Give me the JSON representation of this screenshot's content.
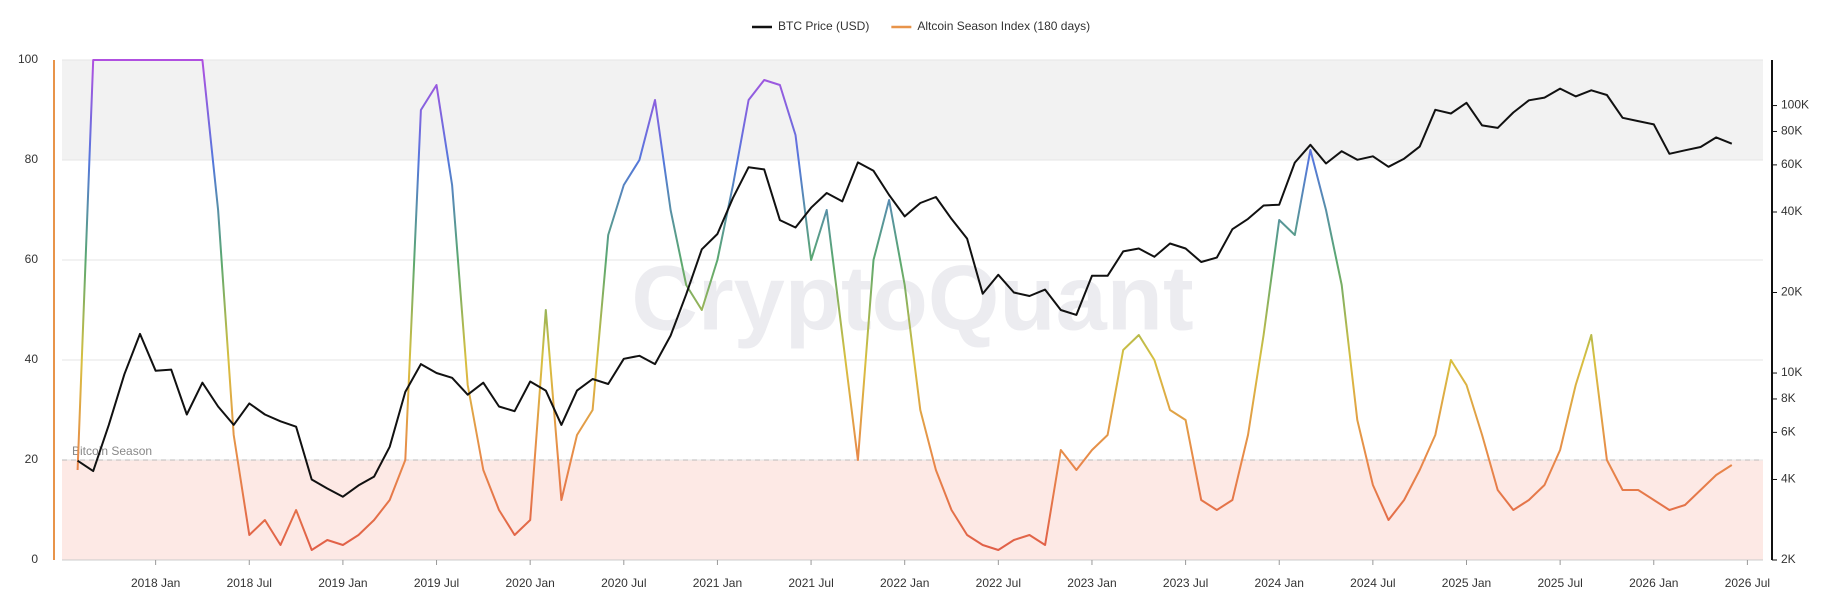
{
  "chart_data": {
    "type": "line",
    "watermark": "CryptoQuant",
    "x": [
      "2017-08",
      "2017-09",
      "2017-10",
      "2017-11",
      "2017-12",
      "2018-01",
      "2018-02",
      "2018-03",
      "2018-04",
      "2018-05",
      "2018-06",
      "2018-07",
      "2018-08",
      "2018-09",
      "2018-10",
      "2018-11",
      "2018-12",
      "2019-01",
      "2019-02",
      "2019-03",
      "2019-04",
      "2019-05",
      "2019-06",
      "2019-07",
      "2019-08",
      "2019-09",
      "2019-10",
      "2019-11",
      "2019-12",
      "2020-01",
      "2020-02",
      "2020-03",
      "2020-04",
      "2020-05",
      "2020-06",
      "2020-07",
      "2020-08",
      "2020-09",
      "2020-10",
      "2020-11",
      "2020-12",
      "2021-01",
      "2021-02",
      "2021-03",
      "2021-04",
      "2021-05",
      "2021-06",
      "2021-07",
      "2021-08",
      "2021-09",
      "2021-10",
      "2021-11",
      "2021-12",
      "2022-01",
      "2022-02",
      "2022-03",
      "2022-04",
      "2022-05",
      "2022-06",
      "2022-07",
      "2022-08",
      "2022-09",
      "2022-10",
      "2022-11",
      "2022-12",
      "2023-01",
      "2023-02",
      "2023-03",
      "2023-04",
      "2023-05",
      "2023-06",
      "2023-07",
      "2023-08",
      "2023-09",
      "2023-10",
      "2023-11",
      "2023-12",
      "2024-01",
      "2024-02",
      "2024-03",
      "2024-04",
      "2024-05",
      "2024-06",
      "2024-07",
      "2024-08",
      "2024-09",
      "2024-10",
      "2024-11",
      "2024-12",
      "2025-01",
      "2025-02",
      "2025-03",
      "2025-04",
      "2025-05",
      "2025-06",
      "2025-07",
      "2025-08",
      "2025-09",
      "2025-10",
      "2025-11",
      "2025-12",
      "2026-01",
      "2026-02",
      "2026-03",
      "2026-04",
      "2026-05",
      "2026-06"
    ],
    "series": [
      {
        "name": "BTC Price (USD)",
        "color": "#111111",
        "axis": "y2",
        "values": [
          4700,
          4300,
          6400,
          9900,
          14000,
          10200,
          10300,
          7000,
          9200,
          7500,
          6400,
          7700,
          7000,
          6600,
          6300,
          4000,
          3700,
          3450,
          3800,
          4100,
          5300,
          8500,
          10800,
          10000,
          9600,
          8300,
          9200,
          7500,
          7200,
          9300,
          8600,
          6400,
          8600,
          9500,
          9100,
          11300,
          11600,
          10800,
          13800,
          19700,
          29000,
          33100,
          45200,
          58800,
          57700,
          37300,
          35000,
          41500,
          47100,
          43800,
          61300,
          57000,
          46300,
          38500,
          43200,
          45500,
          37700,
          31800,
          19800,
          23300,
          20000,
          19400,
          20500,
          17200,
          16500,
          23100,
          23100,
          28500,
          29200,
          27200,
          30500,
          29200,
          26000,
          27000,
          34500,
          37700,
          42300,
          42600,
          61200,
          71300,
          60700,
          67500,
          62700,
          64600,
          59000,
          63300,
          70200,
          96400,
          93400,
          102400,
          84300,
          82500,
          94200,
          104600,
          107100,
          115700,
          108200,
          114000,
          109500,
          90000,
          87500,
          85000,
          66000,
          68000,
          70000,
          76000,
          72000
        ]
      },
      {
        "name": "Altcoin Season Index (180 days)",
        "color": "#e8944a",
        "values": [
          18,
          100,
          100,
          100,
          100,
          100,
          100,
          100,
          100,
          70,
          25,
          5,
          8,
          3,
          10,
          2,
          4,
          3,
          5,
          8,
          12,
          20,
          90,
          95,
          75,
          35,
          18,
          10,
          5,
          8,
          50,
          12,
          25,
          30,
          65,
          75,
          80,
          92,
          70,
          55,
          50,
          60,
          75,
          92,
          96,
          95,
          85,
          60,
          70,
          45,
          20,
          60,
          72,
          55,
          30,
          18,
          10,
          5,
          3,
          2,
          4,
          5,
          3,
          22,
          18,
          22,
          25,
          42,
          45,
          40,
          30,
          28,
          12,
          10,
          12,
          25,
          45,
          68,
          65,
          82,
          70,
          55,
          28,
          15,
          8,
          12,
          18,
          25,
          40,
          35,
          25,
          14,
          10,
          12,
          15,
          22,
          35,
          45,
          20,
          14,
          14,
          12,
          10,
          11,
          14,
          17,
          19
        ]
      }
    ],
    "colorscale": [
      {
        "value": 0,
        "color": "#e05a48"
      },
      {
        "value": 20,
        "color": "#e8894a"
      },
      {
        "value": 40,
        "color": "#d8c040"
      },
      {
        "value": 60,
        "color": "#5aa870"
      },
      {
        "value": 80,
        "color": "#5577dd"
      },
      {
        "value": 100,
        "color": "#b050e0"
      }
    ],
    "bands": [
      {
        "from": 80,
        "to": 100,
        "color": "#f2f2f2"
      },
      {
        "from": 0,
        "to": 20,
        "color": "#fde9e5"
      }
    ],
    "threshold": {
      "value": 20,
      "label": "Bitcoin Season"
    },
    "xlim": [
      "2017-07",
      "2026-08"
    ],
    "xticks": [
      {
        "value": "2018-01",
        "label": "2018 Jan"
      },
      {
        "value": "2018-07",
        "label": "2018 Jul"
      },
      {
        "value": "2019-01",
        "label": "2019 Jan"
      },
      {
        "value": "2019-07",
        "label": "2019 Jul"
      },
      {
        "value": "2020-01",
        "label": "2020 Jan"
      },
      {
        "value": "2020-07",
        "label": "2020 Jul"
      },
      {
        "value": "2021-01",
        "label": "2021 Jan"
      },
      {
        "value": "2021-07",
        "label": "2021 Jul"
      },
      {
        "value": "2022-01",
        "label": "2022 Jan"
      },
      {
        "value": "2022-07",
        "label": "2022 Jul"
      },
      {
        "value": "2023-01",
        "label": "2023 Jan"
      },
      {
        "value": "2023-07",
        "label": "2023 Jul"
      },
      {
        "value": "2024-01",
        "label": "2024 Jan"
      },
      {
        "value": "2024-07",
        "label": "2024 Jul"
      },
      {
        "value": "2025-01",
        "label": "2025 Jan"
      },
      {
        "value": "2025-07",
        "label": "2025 Jul"
      },
      {
        "value": "2026-01",
        "label": "2026 Jan"
      },
      {
        "value": "2026-07",
        "label": "2026 Jul"
      }
    ],
    "ylim": [
      0,
      100
    ],
    "yticks": [
      0,
      20,
      40,
      60,
      80,
      100
    ],
    "y2lim": [
      2000,
      148000
    ],
    "y2scale": "log",
    "y2ticks": [
      {
        "value": 2000,
        "label": "2K"
      },
      {
        "value": 4000,
        "label": "4K"
      },
      {
        "value": 6000,
        "label": "6K"
      },
      {
        "value": 8000,
        "label": "8K"
      },
      {
        "value": 10000,
        "label": "10K"
      },
      {
        "value": 20000,
        "label": "20K"
      },
      {
        "value": 40000,
        "label": "40K"
      },
      {
        "value": 60000,
        "label": "60K"
      },
      {
        "value": 80000,
        "label": "80K"
      },
      {
        "value": 100000,
        "label": "100K"
      }
    ],
    "grid": true,
    "legend": "top"
  }
}
